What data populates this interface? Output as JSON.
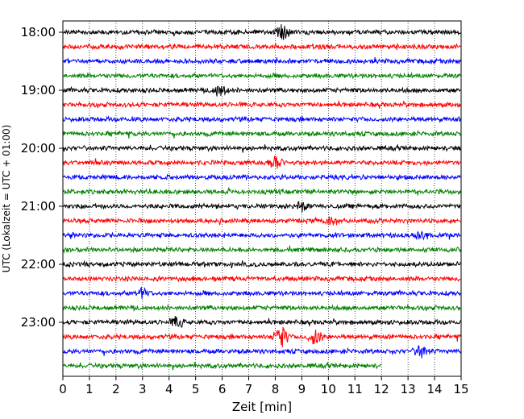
{
  "chart_data": {
    "type": "line",
    "title": "",
    "xlabel": "Zeit  [min]",
    "ylabel": "UTC (Lokalzeit = UTC + 01:00)",
    "xlim": [
      0,
      15
    ],
    "x_ticks": [
      0,
      1,
      2,
      3,
      4,
      5,
      6,
      7,
      8,
      9,
      10,
      11,
      12,
      13,
      14,
      15
    ],
    "x_tick_labels": [
      "0",
      "1",
      "2",
      "3",
      "4",
      "5",
      "6",
      "7",
      "8",
      "9",
      "10",
      "11",
      "12",
      "13",
      "14",
      "15"
    ],
    "y_tick_labels": [
      "18:00",
      "19:00",
      "20:00",
      "21:00",
      "22:00",
      "23:00"
    ],
    "grid": "vertical dotted",
    "colors": [
      "#000000",
      "#ff0000",
      "#0000ff",
      "#008000"
    ],
    "series": [
      {
        "start": "18:00",
        "color": "#000000",
        "x_end": 15
      },
      {
        "start": "18:15",
        "color": "#ff0000",
        "x_end": 15
      },
      {
        "start": "18:30",
        "color": "#0000ff",
        "x_end": 15
      },
      {
        "start": "18:45",
        "color": "#008000",
        "x_end": 15
      },
      {
        "start": "19:00",
        "color": "#000000",
        "x_end": 15
      },
      {
        "start": "19:15",
        "color": "#ff0000",
        "x_end": 15
      },
      {
        "start": "19:30",
        "color": "#0000ff",
        "x_end": 15
      },
      {
        "start": "19:45",
        "color": "#008000",
        "x_end": 15
      },
      {
        "start": "20:00",
        "color": "#000000",
        "x_end": 15
      },
      {
        "start": "20:15",
        "color": "#ff0000",
        "x_end": 15
      },
      {
        "start": "20:30",
        "color": "#0000ff",
        "x_end": 15
      },
      {
        "start": "20:45",
        "color": "#008000",
        "x_end": 15
      },
      {
        "start": "21:00",
        "color": "#000000",
        "x_end": 15
      },
      {
        "start": "21:15",
        "color": "#ff0000",
        "x_end": 15
      },
      {
        "start": "21:30",
        "color": "#0000ff",
        "x_end": 15
      },
      {
        "start": "21:45",
        "color": "#008000",
        "x_end": 15
      },
      {
        "start": "22:00",
        "color": "#000000",
        "x_end": 15
      },
      {
        "start": "22:15",
        "color": "#ff0000",
        "x_end": 15
      },
      {
        "start": "22:30",
        "color": "#0000ff",
        "x_end": 15
      },
      {
        "start": "22:45",
        "color": "#008000",
        "x_end": 15
      },
      {
        "start": "23:00",
        "color": "#000000",
        "x_end": 15
      },
      {
        "start": "23:15",
        "color": "#ff0000",
        "x_end": 15
      },
      {
        "start": "23:30",
        "color": "#0000ff",
        "x_end": 15
      },
      {
        "start": "23:45",
        "color": "#008000",
        "x_end": 12
      }
    ],
    "events": [
      {
        "series": 0,
        "x": 8.3,
        "amplitude": 0.5
      },
      {
        "series": 4,
        "x": 5.9,
        "amplitude": 0.4
      },
      {
        "series": 9,
        "x": 8.0,
        "amplitude": 0.45
      },
      {
        "series": 12,
        "x": 9.0,
        "amplitude": 0.35
      },
      {
        "series": 13,
        "x": 10.1,
        "amplitude": 0.3
      },
      {
        "series": 14,
        "x": 13.5,
        "amplitude": 0.35
      },
      {
        "series": 18,
        "x": 3.0,
        "amplitude": 0.3
      },
      {
        "series": 20,
        "x": 4.3,
        "amplitude": 0.35
      },
      {
        "series": 21,
        "x": 8.2,
        "amplitude": 0.8
      },
      {
        "series": 21,
        "x": 9.5,
        "amplitude": 0.5
      },
      {
        "series": 22,
        "x": 13.5,
        "amplitude": 0.4
      }
    ]
  }
}
